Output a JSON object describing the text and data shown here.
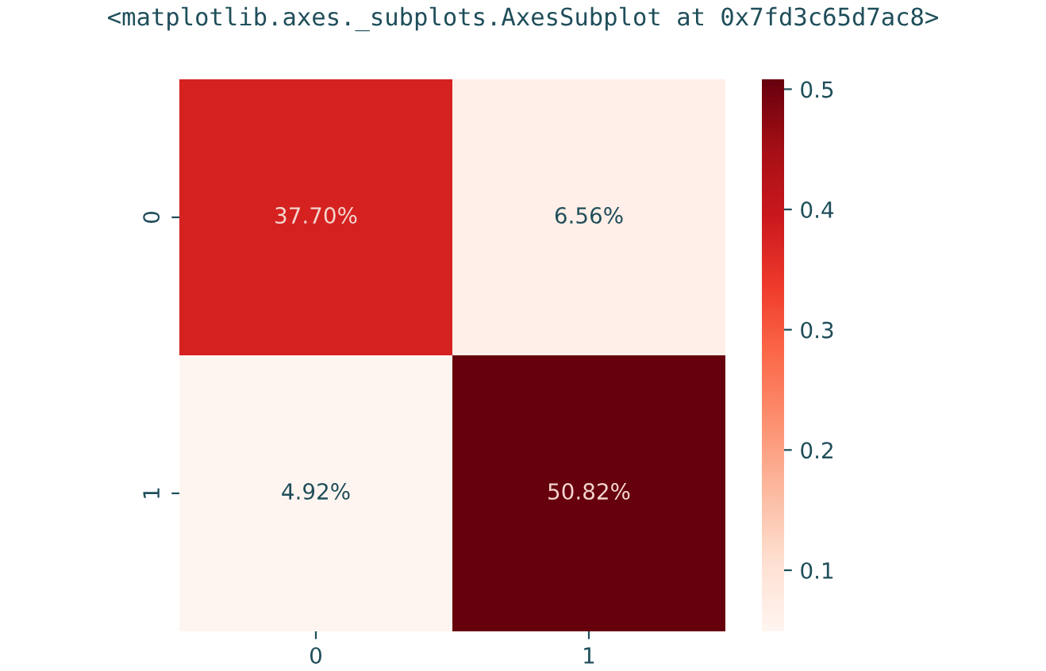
{
  "chart_data": {
    "type": "heatmap",
    "annotations": [
      "<matplotlib.axes._subplots.AxesSubplot at 0x7fd3c65d7ac8>"
    ],
    "categories": [
      "0",
      "1"
    ],
    "y_categories": [
      "0",
      "1"
    ],
    "cells": [
      [
        0.377,
        0.0656
      ],
      [
        0.0492,
        0.5082
      ]
    ],
    "cell_labels": [
      [
        "37.70%",
        "6.56%"
      ],
      [
        "4.92%",
        "50.82%"
      ]
    ],
    "clim": [
      0.0492,
      0.5082
    ],
    "cticks": [
      0.1,
      0.2,
      0.3,
      0.4,
      0.5
    ]
  }
}
